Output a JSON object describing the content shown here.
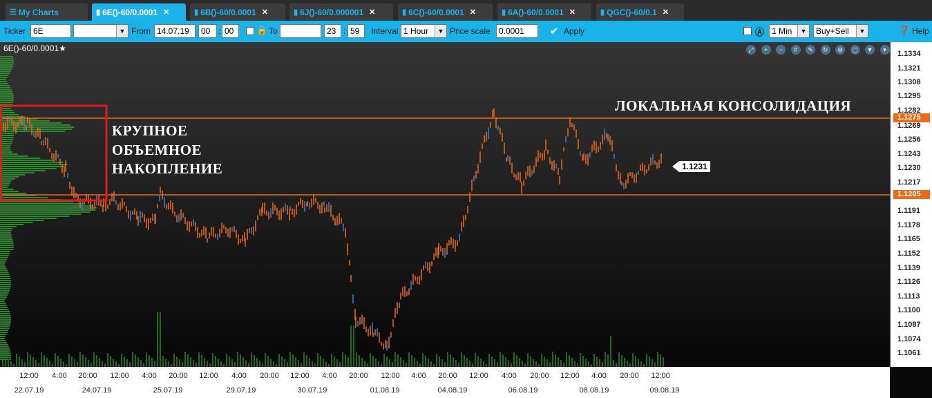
{
  "tabs": [
    {
      "label": "My Charts",
      "icon": "list-icon",
      "active": false
    },
    {
      "label": "6E()-60/0.0001",
      "icon": "bar-chart-icon",
      "active": true
    },
    {
      "label": "6B()-60/0.0001",
      "icon": "bar-chart-icon",
      "active": false
    },
    {
      "label": "6J()-60/0.000001",
      "icon": "bar-chart-icon",
      "active": false
    },
    {
      "label": "6C()-60/0.0001",
      "icon": "bar-chart-icon",
      "active": false
    },
    {
      "label": "6A()-60/0.0001",
      "icon": "bar-chart-icon",
      "active": false
    },
    {
      "label": "QGC()-60/0.1",
      "icon": "bar-chart-icon",
      "active": false
    }
  ],
  "toolbar": {
    "ticker_label": "Ticker",
    "ticker_value": "6E",
    "ticker_select": "",
    "from_label": "From",
    "from_date": "14.07.19",
    "from_hour": "00",
    "from_min": "00",
    "to_label": "To",
    "to_date": "",
    "to_hour": "23",
    "to_min": "59",
    "interval_label": "Interval",
    "interval_value": "1 Hour",
    "price_scale_label": "Price scale",
    "price_scale_value": "0.0001",
    "apply_label": "Apply",
    "min_value": "1 Min",
    "side_value": "Buy+Sell",
    "help_label": "Help"
  },
  "chart": {
    "title": "6E()-60/0.0001",
    "annotation_right": "ЛОКАЛЬНАЯ КОНСОЛИДАЦИЯ",
    "annotation_left": [
      "КРУПНОЕ",
      "ОБЪЕМНОЕ",
      "НАКОПЛЕНИЕ"
    ],
    "last_price": "1.1231",
    "level_upper": "1.1275",
    "level_lower": "1.1205",
    "price_ticks": [
      "1.1334",
      "1.1321",
      "1.1308",
      "1.1295",
      "1.1282",
      "1.1269",
      "1.1256",
      "1.1243",
      "1.1230",
      "1.1217",
      "1.1191",
      "1.1178",
      "1.1165",
      "1.1152",
      "1.1139",
      "1.1126",
      "1.1113",
      "1.1100",
      "1.1087",
      "1.1074",
      "1.1061"
    ],
    "time_ticks": [
      "12:00",
      "4:00",
      "20:00",
      "12:00",
      "4:00",
      "20:00",
      "12:00",
      "4:00",
      "20:00",
      "12:00",
      "4:00",
      "20:00",
      "12:00",
      "4:00",
      "20:00",
      "12:00",
      "4:00",
      "20:00",
      "12:00",
      "4:00",
      "20:00",
      "12:00"
    ],
    "date_ticks": [
      "22.07.19",
      "24.07.19",
      "25.07.19",
      "29.07.19",
      "30.07.19",
      "01.08.19",
      "04.08.19",
      "06.08.19",
      "08.08.19",
      "09.08.19"
    ],
    "colors": {
      "accent": "#19b3ea",
      "level": "#ef6a14",
      "candle": "#ef6a14",
      "volume": "#2ea02e",
      "box": "#e11b1b"
    }
  }
}
